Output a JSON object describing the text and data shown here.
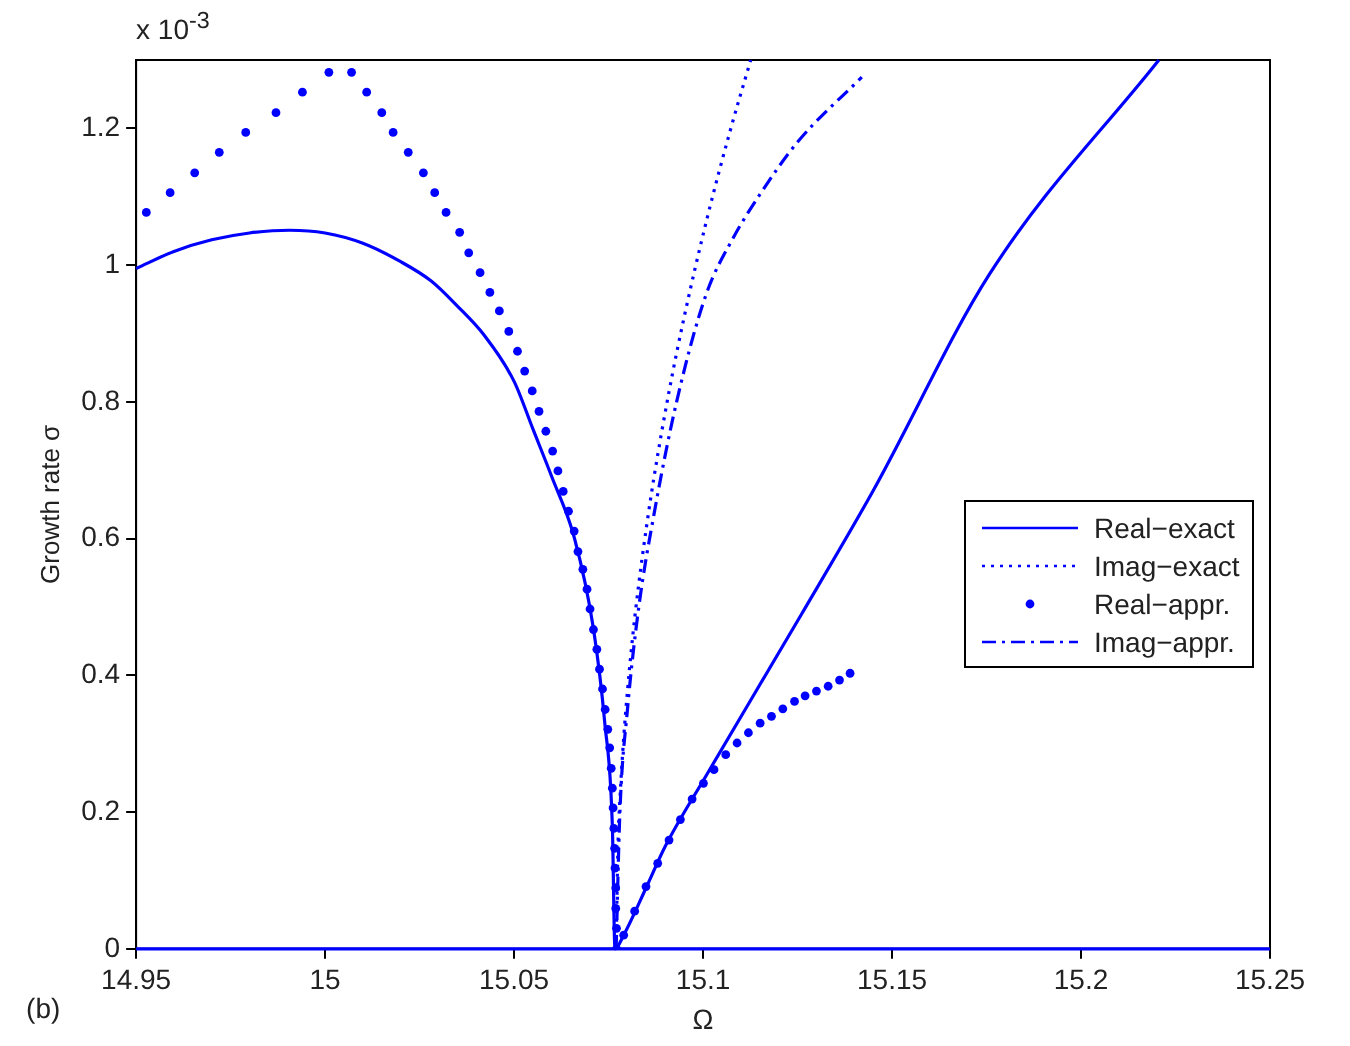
{
  "chart_data": {
    "type": "line",
    "xlabel": "Ω",
    "ylabel": "Growth rate σ",
    "annotations": [
      "x 10$^{-3}$",
      "(b)"
    ],
    "xlim": [
      14.95,
      15.25
    ],
    "xticks": [
      14.95,
      15,
      15.05,
      15.1,
      15.15,
      15.2,
      15.25
    ],
    "ylim": [
      0,
      1.3
    ],
    "yticks": [
      0,
      0.2,
      0.4,
      0.6,
      0.8,
      1,
      1.2
    ],
    "grid": false,
    "legend": "right",
    "series": [
      {
        "name": "Real−exact",
        "color": "#0000ff",
        "type": "line",
        "line_style": "solid",
        "x": [
          14.95,
          14.96,
          14.97,
          14.98,
          14.9906,
          15,
          15.01,
          15.02,
          15.028,
          15.035,
          15.042,
          15.05,
          15.055,
          15.06,
          15.066,
          15.071,
          15.074,
          15.076,
          15.0767,
          15.079,
          15.085,
          15.09,
          15.101,
          15.126,
          15.145,
          15.1757,
          15.2206
        ],
        "values": [
          0.995,
          1.02,
          1.037,
          1.047,
          1.051,
          1.047,
          1.032,
          1.005,
          0.977,
          0.94,
          0.898,
          0.83,
          0.76,
          0.69,
          0.6,
          0.468,
          0.33,
          0.18,
          0,
          0.02,
          0.09,
          0.15,
          0.255,
          0.489,
          0.67,
          0.986,
          1.3
        ]
      },
      {
        "color": "#0000ff",
        "type": "line",
        "line_style": "solid",
        "x": [
          14.95,
          15.0,
          15.05,
          15.1,
          15.15,
          15.2,
          15.25
        ],
        "values": [
          0,
          0,
          0,
          0,
          0,
          0,
          0
        ]
      },
      {
        "name": "Imag−exact",
        "color": "#0000ff",
        "type": "line",
        "line_style": "dotted",
        "x": [
          15.077,
          15.0775,
          15.078,
          15.079,
          15.081,
          15.083,
          15.085,
          15.087,
          15.091,
          15.095,
          15.101,
          15.107,
          15.1126
        ],
        "values": [
          0,
          0.154,
          0.218,
          0.308,
          0.436,
          0.534,
          0.616,
          0.689,
          0.815,
          0.924,
          1.067,
          1.193,
          1.3
        ]
      },
      {
        "name": "Real−appr.",
        "color": "#0000ff",
        "type": "scatter",
        "marker": "circle",
        "x": [
          14.9527,
          14.959,
          14.9655,
          14.972,
          14.979,
          14.987,
          14.994,
          15.001,
          15.007,
          15.011,
          15.015,
          15.018,
          15.022,
          15.026,
          15.029,
          15.032,
          15.0356,
          15.038,
          15.041,
          15.0436,
          15.0461,
          15.0486,
          15.0509,
          15.0528,
          15.0548,
          15.0566,
          15.0584,
          15.0602,
          15.0616,
          15.063,
          15.0644,
          15.0659,
          15.0669,
          15.0682,
          15.0693,
          15.0701,
          15.071,
          15.0719,
          15.0726,
          15.0734,
          15.0741,
          15.0748,
          15.0753,
          15.0757,
          15.076,
          15.0762,
          15.0764,
          15.0766,
          15.0767,
          15.0769,
          15.0769,
          15.0771,
          15.0771,
          15.079,
          15.0819,
          15.0849,
          15.088,
          15.091,
          15.094,
          15.0971,
          15.1001,
          15.1029,
          15.106,
          15.109,
          15.112,
          15.1151,
          15.1181,
          15.1211,
          15.1242,
          15.127,
          15.13,
          15.1331,
          15.1361,
          15.1389
        ],
        "values": [
          1.077,
          1.106,
          1.135,
          1.165,
          1.194,
          1.223,
          1.253,
          1.282,
          1.282,
          1.253,
          1.223,
          1.194,
          1.165,
          1.135,
          1.106,
          1.077,
          1.048,
          1.018,
          0.989,
          0.96,
          0.933,
          0.903,
          0.874,
          0.845,
          0.816,
          0.786,
          0.757,
          0.728,
          0.699,
          0.669,
          0.64,
          0.611,
          0.581,
          0.555,
          0.526,
          0.497,
          0.467,
          0.438,
          0.409,
          0.38,
          0.35,
          0.321,
          0.294,
          0.264,
          0.235,
          0.206,
          0.176,
          0.147,
          0.118,
          0.089,
          0.059,
          0.03,
          0,
          0.02,
          0.055,
          0.091,
          0.125,
          0.159,
          0.189,
          0.219,
          0.242,
          0.262,
          0.284,
          0.301,
          0.316,
          0.33,
          0.34,
          0.351,
          0.362,
          0.37,
          0.377,
          0.384,
          0.393,
          0.403
        ]
      },
      {
        "name": "Imag−appr.",
        "color": "#0000ff",
        "type": "line",
        "line_style": "dashdot",
        "x": [
          15.077,
          15.078,
          15.08,
          15.083,
          15.087,
          15.093,
          15.1008,
          15.108,
          15.115,
          15.125,
          15.142
        ],
        "values": [
          0,
          0.2,
          0.35,
          0.5,
          0.635,
          0.8,
          0.957,
          1.04,
          1.103,
          1.18,
          1.275
        ]
      }
    ]
  }
}
